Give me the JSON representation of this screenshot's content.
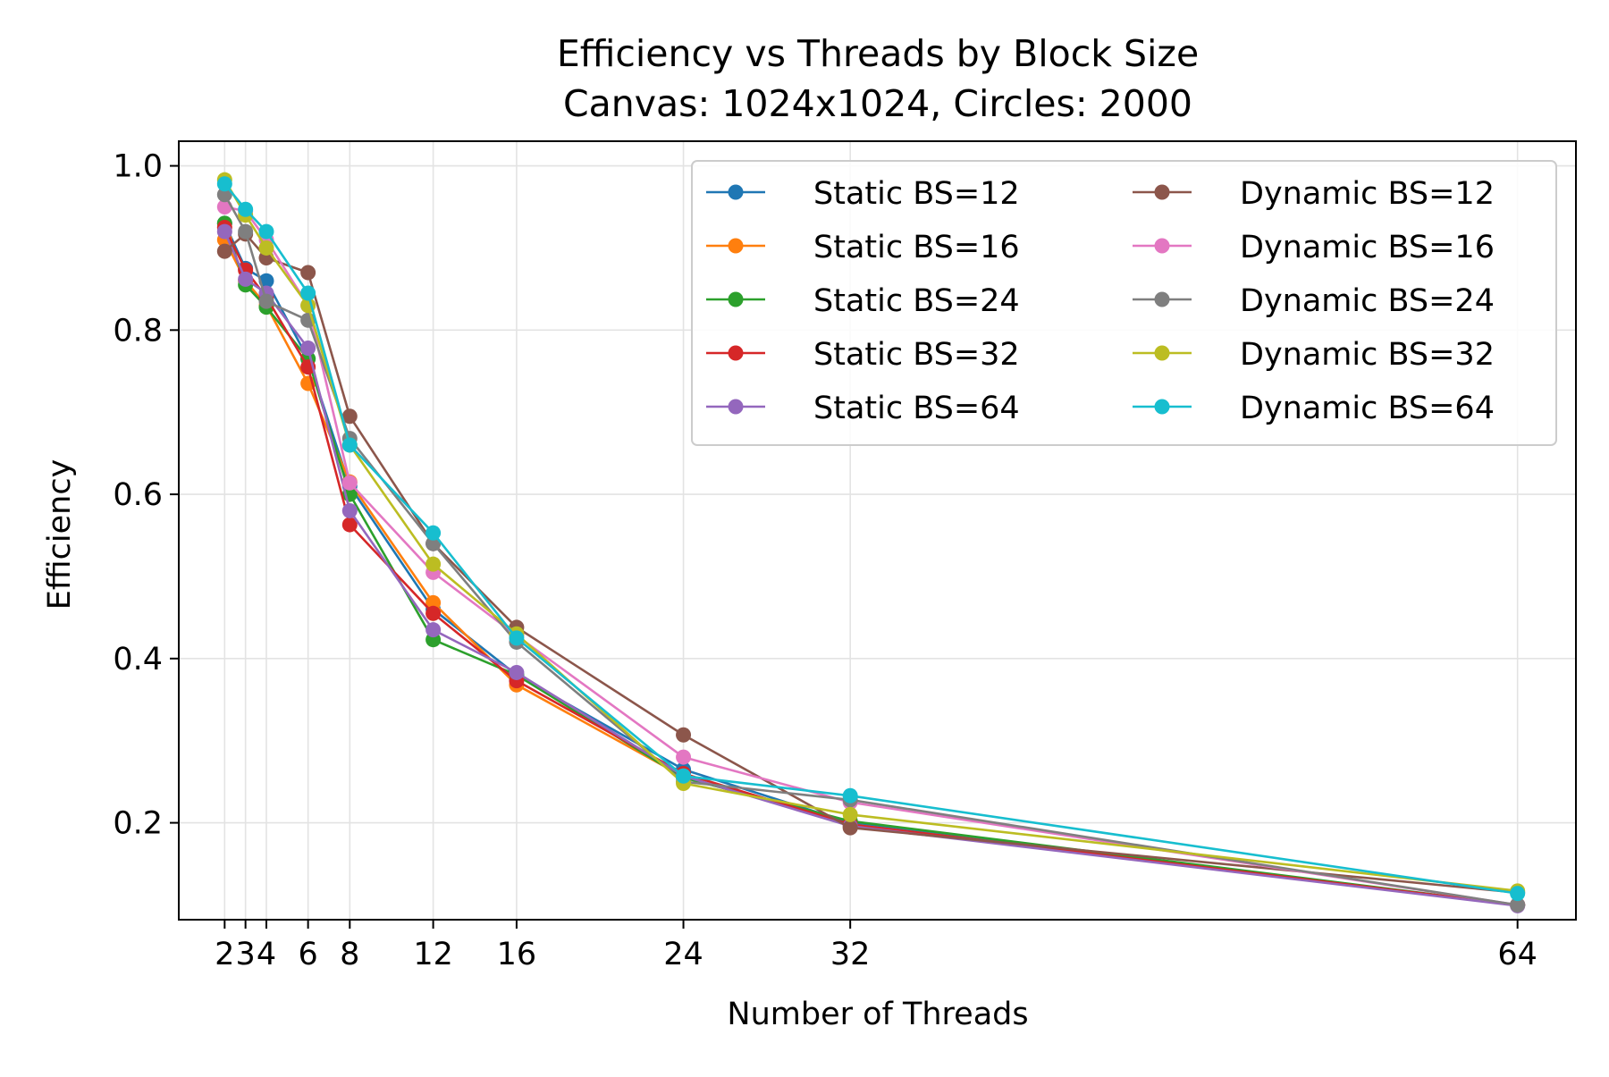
{
  "chart_data": {
    "type": "line",
    "title": "Efficiency vs Threads by Block Size",
    "subtitle": "Canvas: 1024x1024, Circles: 2000",
    "xlabel": "Number of Threads",
    "ylabel": "Efficiency",
    "x": [
      2,
      3,
      4,
      6,
      8,
      12,
      16,
      24,
      32,
      64
    ],
    "x_ticks": [
      "2",
      "3",
      "4",
      "6",
      "8",
      "12",
      "16",
      "24",
      "32",
      "64"
    ],
    "y_ticks": [
      "0.2",
      "0.4",
      "0.6",
      "0.8",
      "1.0"
    ],
    "y_tick_values": [
      0.2,
      0.4,
      0.6,
      0.8,
      1.0
    ],
    "xlim": [
      -0.2,
      66.8
    ],
    "ylim": [
      0.082,
      1.03
    ],
    "grid": true,
    "legend_position": "top-right",
    "legend_columns": 2,
    "series": [
      {
        "name": "Static BS=12",
        "color": "#1f77b4",
        "values": [
          0.93,
          0.875,
          0.86,
          0.765,
          0.61,
          0.46,
          0.38,
          0.265,
          0.2,
          0.1
        ]
      },
      {
        "name": "Static BS=16",
        "color": "#ff7f0e",
        "values": [
          0.91,
          0.86,
          0.83,
          0.735,
          0.615,
          0.468,
          0.368,
          0.256,
          0.198,
          0.1
        ]
      },
      {
        "name": "Static BS=24",
        "color": "#2ca02c",
        "values": [
          0.93,
          0.855,
          0.828,
          0.765,
          0.6,
          0.423,
          0.38,
          0.255,
          0.202,
          0.1
        ]
      },
      {
        "name": "Static BS=32",
        "color": "#d62728",
        "values": [
          0.925,
          0.873,
          0.84,
          0.755,
          0.563,
          0.455,
          0.373,
          0.26,
          0.198,
          0.1
        ]
      },
      {
        "name": "Static BS=64",
        "color": "#9467bd",
        "values": [
          0.92,
          0.862,
          0.845,
          0.778,
          0.58,
          0.435,
          0.383,
          0.257,
          0.196,
          0.099
        ]
      },
      {
        "name": "Dynamic BS=12",
        "color": "#8c564b",
        "values": [
          0.896,
          0.917,
          0.888,
          0.87,
          0.695,
          0.54,
          0.438,
          0.307,
          0.194,
          0.115
        ]
      },
      {
        "name": "Dynamic BS=16",
        "color": "#e377c2",
        "values": [
          0.95,
          0.945,
          0.91,
          0.83,
          0.614,
          0.505,
          0.428,
          0.28,
          0.225,
          0.1
        ]
      },
      {
        "name": "Dynamic BS=24",
        "color": "#7f7f7f",
        "values": [
          0.965,
          0.92,
          0.835,
          0.812,
          0.668,
          0.54,
          0.42,
          0.25,
          0.228,
          0.1
        ]
      },
      {
        "name": "Dynamic BS=32",
        "color": "#bcbd22",
        "values": [
          0.983,
          0.94,
          0.9,
          0.83,
          0.66,
          0.515,
          0.43,
          0.248,
          0.21,
          0.117
        ]
      },
      {
        "name": "Dynamic BS=64",
        "color": "#17becf",
        "values": [
          0.978,
          0.947,
          0.92,
          0.845,
          0.66,
          0.553,
          0.425,
          0.257,
          0.233,
          0.114
        ]
      }
    ]
  }
}
